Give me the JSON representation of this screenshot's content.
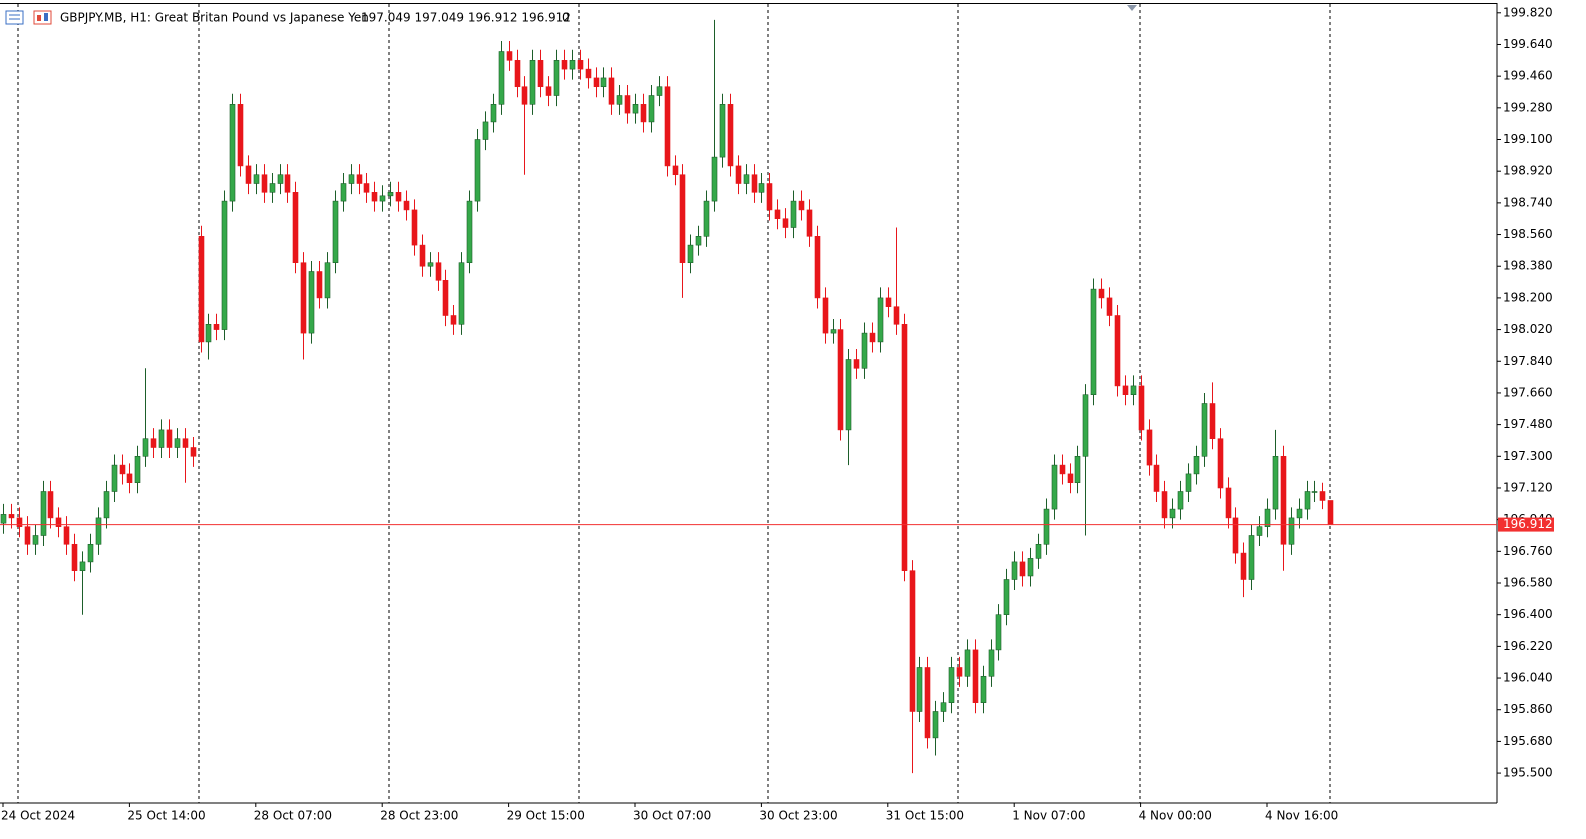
{
  "chart_data": {
    "type": "candlestick",
    "title": "GBPJPY.MB, H1:  Great Britan Pound vs Japanese Yen",
    "quote": "197.049 197.049 196.912 196.912",
    "volume": "0",
    "bull_color": "#35a84a",
    "bear_color": "#e8161b",
    "price_line_color": "#f23030",
    "last_price": 196.912,
    "ylim": [
      195.33,
      199.87
    ],
    "yticks": [
      {
        "value": 199.82,
        "label": "199.820"
      },
      {
        "value": 199.64,
        "label": "199.640"
      },
      {
        "value": 199.46,
        "label": "199.460"
      },
      {
        "value": 199.28,
        "label": "199.280"
      },
      {
        "value": 199.1,
        "label": "199.100"
      },
      {
        "value": 198.92,
        "label": "198.920"
      },
      {
        "value": 198.74,
        "label": "198.740"
      },
      {
        "value": 198.56,
        "label": "198.560"
      },
      {
        "value": 198.38,
        "label": "198.380"
      },
      {
        "value": 198.2,
        "label": "198.200"
      },
      {
        "value": 198.02,
        "label": "198.020"
      },
      {
        "value": 197.84,
        "label": "197.840"
      },
      {
        "value": 197.66,
        "label": "197.660"
      },
      {
        "value": 197.48,
        "label": "197.480"
      },
      {
        "value": 197.3,
        "label": "197.300"
      },
      {
        "value": 197.12,
        "label": "197.120"
      },
      {
        "value": 196.94,
        "label": "196.940"
      },
      {
        "value": 196.76,
        "label": "196.760"
      },
      {
        "value": 196.58,
        "label": "196.580"
      },
      {
        "value": 196.4,
        "label": "196.400"
      },
      {
        "value": 196.22,
        "label": "196.220"
      },
      {
        "value": 196.04,
        "label": "196.040"
      },
      {
        "value": 195.86,
        "label": "195.860"
      },
      {
        "value": 195.68,
        "label": "195.680"
      },
      {
        "value": 195.5,
        "label": "195.500"
      }
    ],
    "categories": [
      "24 Oct 2024",
      null,
      null,
      null,
      null,
      null,
      null,
      null,
      null,
      null,
      null,
      null,
      null,
      null,
      null,
      null,
      "25 Oct 14:00",
      null,
      null,
      null,
      null,
      null,
      null,
      null,
      null,
      null,
      null,
      null,
      null,
      null,
      null,
      null,
      "28 Oct 07:00",
      null,
      null,
      null,
      null,
      null,
      null,
      null,
      null,
      null,
      null,
      null,
      null,
      null,
      null,
      null,
      "28 Oct 23:00",
      null,
      null,
      null,
      null,
      null,
      null,
      null,
      null,
      null,
      null,
      null,
      null,
      null,
      null,
      null,
      "29 Oct 15:00",
      null,
      null,
      null,
      null,
      null,
      null,
      null,
      null,
      null,
      null,
      null,
      null,
      null,
      null,
      null,
      "30 Oct 07:00",
      null,
      null,
      null,
      null,
      null,
      null,
      null,
      null,
      null,
      null,
      null,
      null,
      null,
      null,
      null,
      "30 Oct 23:00",
      null,
      null,
      null,
      null,
      null,
      null,
      null,
      null,
      null,
      null,
      null,
      null,
      null,
      null,
      null,
      "31 Oct 15:00",
      null,
      null,
      null,
      null,
      null,
      null,
      null,
      null,
      null,
      null,
      null,
      null,
      null,
      null,
      null,
      "1 Nov 07:00",
      null,
      null,
      null,
      null,
      null,
      null,
      null,
      null,
      null,
      null,
      null,
      null,
      null,
      null,
      null,
      "4 Nov 00:00",
      null,
      null,
      null,
      null,
      null,
      null,
      null,
      null,
      null,
      null,
      null,
      null,
      null,
      null,
      null,
      "4 Nov 16:00",
      null,
      null,
      null,
      null,
      null,
      null,
      null,
      null
    ],
    "open": [
      196.92,
      196.97,
      196.95,
      196.9,
      196.8,
      196.85,
      197.1,
      196.95,
      196.9,
      196.8,
      196.65,
      196.7,
      196.8,
      196.95,
      197.1,
      197.25,
      197.2,
      197.15,
      197.3,
      197.4,
      197.35,
      197.45,
      197.35,
      197.4,
      197.35,
      198.55,
      197.95,
      198.05,
      198.02,
      198.75,
      199.3,
      198.95,
      198.85,
      198.9,
      198.8,
      198.85,
      198.9,
      198.8,
      198.4,
      198.0,
      198.35,
      198.2,
      198.4,
      198.75,
      198.85,
      198.9,
      198.85,
      198.8,
      198.75,
      198.78,
      198.8,
      198.75,
      198.7,
      198.5,
      198.38,
      198.4,
      198.3,
      198.1,
      198.05,
      198.4,
      198.75,
      199.1,
      199.2,
      199.3,
      199.6,
      199.55,
      199.4,
      199.3,
      199.55,
      199.4,
      199.35,
      199.55,
      199.5,
      199.55,
      199.5,
      199.45,
      199.4,
      199.45,
      199.3,
      199.35,
      199.25,
      199.3,
      199.2,
      199.35,
      199.4,
      198.95,
      198.9,
      198.4,
      198.5,
      198.55,
      198.75,
      199.0,
      199.3,
      198.95,
      198.85,
      198.9,
      198.8,
      198.85,
      198.7,
      198.65,
      198.6,
      198.75,
      198.7,
      198.55,
      198.2,
      198.0,
      198.02,
      197.45,
      197.85,
      197.8,
      198.0,
      197.95,
      198.2,
      198.15,
      198.05,
      196.65,
      195.85,
      196.1,
      195.7,
      195.85,
      195.9,
      196.1,
      196.05,
      196.2,
      195.9,
      196.05,
      196.2,
      196.4,
      196.6,
      196.7,
      196.62,
      196.72,
      196.8,
      197.0,
      197.25,
      197.2,
      197.15,
      197.3,
      197.65,
      198.25,
      198.2,
      198.1,
      197.7,
      197.65,
      197.7,
      197.45,
      197.25,
      197.1,
      196.95,
      197.0,
      197.1,
      197.2,
      197.3,
      197.6,
      197.4,
      197.12,
      196.95,
      196.75,
      196.6,
      196.85,
      196.9,
      197.0,
      197.3,
      196.8,
      196.95,
      197.0,
      197.1,
      197.1,
      197.049
    ],
    "high": [
      197.03,
      197.03,
      197.01,
      196.96,
      196.91,
      197.16,
      197.16,
      197.01,
      196.96,
      196.86,
      196.76,
      196.86,
      197.01,
      197.16,
      197.31,
      197.31,
      197.26,
      197.36,
      197.8,
      197.46,
      197.51,
      197.51,
      197.46,
      197.46,
      197.41,
      198.61,
      198.11,
      198.11,
      198.81,
      199.36,
      199.36,
      199.01,
      198.96,
      198.96,
      198.91,
      198.96,
      198.96,
      198.86,
      198.46,
      198.41,
      198.41,
      198.46,
      198.81,
      198.91,
      198.96,
      198.96,
      198.91,
      198.86,
      198.84,
      198.86,
      198.86,
      198.81,
      198.76,
      198.56,
      198.46,
      198.46,
      198.36,
      198.16,
      198.46,
      198.81,
      199.16,
      199.26,
      199.36,
      199.66,
      199.66,
      199.61,
      199.46,
      199.61,
      199.61,
      199.46,
      199.61,
      199.61,
      199.61,
      199.61,
      199.56,
      199.51,
      199.51,
      199.51,
      199.41,
      199.41,
      199.36,
      199.36,
      199.41,
      199.46,
      199.46,
      199.01,
      198.96,
      198.56,
      198.61,
      198.81,
      199.78,
      199.36,
      199.36,
      199.01,
      198.96,
      198.96,
      198.91,
      198.91,
      198.76,
      198.71,
      198.81,
      198.81,
      198.76,
      198.61,
      198.26,
      198.08,
      198.08,
      197.91,
      197.91,
      198.06,
      198.06,
      198.26,
      198.26,
      198.6,
      198.11,
      196.71,
      196.16,
      196.16,
      195.91,
      195.96,
      196.16,
      196.16,
      196.26,
      196.26,
      196.11,
      196.26,
      196.46,
      196.66,
      196.76,
      196.76,
      196.78,
      196.86,
      197.06,
      197.31,
      197.31,
      197.26,
      197.36,
      197.71,
      198.31,
      198.31,
      198.26,
      198.16,
      197.76,
      197.76,
      197.76,
      197.51,
      197.31,
      197.16,
      197.06,
      197.16,
      197.26,
      197.36,
      197.66,
      197.72,
      197.46,
      197.18,
      197.01,
      196.81,
      196.91,
      196.96,
      197.06,
      197.45,
      197.36,
      197.01,
      197.06,
      197.16,
      197.16,
      197.15,
      197.049
    ],
    "low": [
      196.86,
      196.89,
      196.84,
      196.74,
      196.74,
      196.79,
      196.89,
      196.84,
      196.74,
      196.59,
      196.4,
      196.64,
      196.74,
      196.89,
      197.04,
      197.14,
      197.09,
      197.09,
      197.24,
      197.29,
      197.29,
      197.29,
      197.29,
      197.15,
      197.24,
      197.89,
      197.85,
      197.96,
      197.96,
      198.69,
      198.89,
      198.79,
      198.79,
      198.74,
      198.74,
      198.79,
      198.74,
      198.34,
      197.85,
      197.94,
      198.14,
      198.14,
      198.34,
      198.69,
      198.79,
      198.79,
      198.74,
      198.69,
      198.69,
      198.72,
      198.69,
      198.64,
      198.44,
      198.32,
      198.32,
      198.24,
      198.04,
      197.99,
      197.99,
      198.34,
      198.69,
      199.04,
      199.14,
      199.24,
      199.49,
      199.34,
      198.9,
      199.24,
      199.34,
      199.29,
      199.29,
      199.44,
      199.44,
      199.44,
      199.39,
      199.34,
      199.34,
      199.24,
      199.24,
      199.19,
      199.19,
      199.14,
      199.14,
      199.29,
      198.89,
      198.84,
      198.2,
      198.34,
      198.44,
      198.49,
      198.69,
      198.94,
      198.89,
      198.79,
      198.79,
      198.74,
      198.74,
      198.64,
      198.59,
      198.54,
      198.54,
      198.64,
      198.49,
      198.14,
      197.94,
      197.94,
      197.39,
      197.25,
      197.74,
      197.74,
      197.89,
      197.89,
      198.09,
      197.99,
      196.59,
      195.5,
      195.79,
      195.64,
      195.6,
      195.79,
      195.84,
      195.99,
      195.99,
      195.84,
      195.84,
      195.99,
      196.14,
      196.34,
      196.54,
      196.56,
      196.56,
      196.66,
      196.74,
      196.94,
      197.14,
      197.09,
      197.09,
      196.85,
      197.59,
      198.14,
      198.04,
      197.64,
      197.59,
      197.59,
      197.39,
      197.19,
      197.04,
      196.89,
      196.89,
      196.94,
      197.04,
      197.14,
      197.24,
      197.34,
      197.06,
      196.89,
      196.69,
      196.5,
      196.54,
      196.79,
      196.84,
      196.94,
      196.65,
      196.74,
      196.89,
      196.94,
      197.04,
      197.0,
      196.912
    ],
    "close": [
      196.97,
      196.95,
      196.9,
      196.8,
      196.85,
      197.1,
      196.95,
      196.9,
      196.8,
      196.65,
      196.7,
      196.8,
      196.95,
      197.1,
      197.25,
      197.2,
      197.15,
      197.3,
      197.4,
      197.35,
      197.45,
      197.35,
      197.4,
      197.35,
      197.3,
      197.95,
      198.05,
      198.02,
      198.75,
      199.3,
      198.95,
      198.85,
      198.9,
      198.8,
      198.85,
      198.9,
      198.8,
      198.4,
      198.0,
      198.35,
      198.2,
      198.4,
      198.75,
      198.85,
      198.9,
      198.85,
      198.8,
      198.75,
      198.78,
      198.8,
      198.75,
      198.7,
      198.5,
      198.38,
      198.4,
      198.3,
      198.1,
      198.05,
      198.4,
      198.75,
      199.1,
      199.2,
      199.3,
      199.6,
      199.55,
      199.4,
      199.3,
      199.55,
      199.4,
      199.35,
      199.55,
      199.5,
      199.55,
      199.5,
      199.45,
      199.4,
      199.45,
      199.3,
      199.35,
      199.25,
      199.3,
      199.2,
      199.35,
      199.4,
      198.95,
      198.9,
      198.4,
      198.5,
      198.55,
      198.75,
      199.0,
      199.3,
      198.95,
      198.85,
      198.9,
      198.8,
      198.85,
      198.7,
      198.65,
      198.6,
      198.75,
      198.7,
      198.55,
      198.2,
      198.0,
      198.02,
      197.45,
      197.85,
      197.8,
      198.0,
      197.95,
      198.2,
      198.15,
      198.05,
      196.65,
      195.85,
      196.1,
      195.7,
      195.85,
      195.9,
      196.1,
      196.05,
      196.2,
      195.9,
      196.05,
      196.2,
      196.4,
      196.6,
      196.7,
      196.62,
      196.72,
      196.8,
      197.0,
      197.25,
      197.2,
      197.15,
      197.3,
      197.65,
      198.25,
      198.2,
      198.1,
      197.7,
      197.65,
      197.7,
      197.45,
      197.25,
      197.1,
      196.95,
      197.0,
      197.1,
      197.2,
      197.3,
      197.6,
      197.4,
      197.12,
      196.95,
      196.75,
      196.6,
      196.85,
      196.9,
      197.0,
      197.3,
      196.8,
      196.95,
      197.0,
      197.1,
      197.1,
      197.049,
      196.912
    ]
  }
}
